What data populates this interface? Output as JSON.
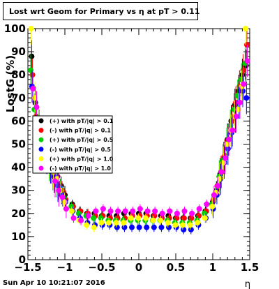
{
  "footer_timestamp": "Sun Apr 10 10:21:07 2016",
  "chart_data": {
    "type": "scatter",
    "title": "Lost wrt Geom for Primary vs  η at pT > 0.11",
    "xlabel": "η",
    "ylabel": "LostG (%)",
    "xlim": [
      -1.5,
      1.5
    ],
    "ylim": [
      0,
      100
    ],
    "xticks": [
      "−1.5",
      "−1",
      "−0.5",
      "0",
      "0.5",
      "1",
      "1.5"
    ],
    "yticks": [
      "0",
      "10",
      "20",
      "30",
      "40",
      "50",
      "60",
      "70",
      "80",
      "90",
      "100"
    ],
    "legend_position": "left-center",
    "x": [
      -1.45,
      -1.4,
      -1.35,
      -1.3,
      -1.25,
      -1.2,
      -1.15,
      -1.1,
      -1.05,
      -1.0,
      -0.9,
      -0.8,
      -0.7,
      -0.6,
      -0.5,
      -0.4,
      -0.3,
      -0.2,
      -0.1,
      0.0,
      0.1,
      0.2,
      0.3,
      0.4,
      0.5,
      0.6,
      0.7,
      0.8,
      0.9,
      1.0,
      1.05,
      1.1,
      1.15,
      1.2,
      1.25,
      1.3,
      1.35,
      1.4,
      1.45
    ],
    "series": [
      {
        "name": "(+) with pT/|q| > 0.1",
        "color": "#000000",
        "values": [
          88,
          68,
          58,
          48,
          45,
          42,
          40,
          36,
          32,
          28,
          24,
          21,
          20,
          20,
          19,
          19,
          19,
          20,
          20,
          20,
          20,
          19,
          19,
          19,
          18,
          18,
          18,
          19,
          21,
          25,
          30,
          37,
          44,
          52,
          60,
          67,
          73,
          80,
          84
        ]
      },
      {
        "name": "(-) with pT/|q| > 0.1",
        "color": "#ff0000",
        "values": [
          80,
          62,
          55,
          50,
          45,
          40,
          36,
          33,
          30,
          26,
          23,
          21,
          20,
          19,
          19,
          18,
          18,
          18,
          19,
          19,
          19,
          19,
          18,
          18,
          18,
          18,
          18,
          19,
          21,
          26,
          32,
          38,
          45,
          52,
          60,
          68,
          75,
          82,
          93
        ]
      },
      {
        "name": "(+) with pT/|q| > 0.5",
        "color": "#00cc00",
        "values": [
          82,
          65,
          56,
          52,
          46,
          41,
          37,
          34,
          31,
          27,
          23,
          20,
          19,
          18,
          18,
          17,
          17,
          17,
          17,
          17,
          17,
          17,
          17,
          17,
          16,
          16,
          16,
          17,
          20,
          24,
          29,
          36,
          43,
          50,
          58,
          65,
          71,
          78,
          85
        ]
      },
      {
        "name": "(-) with pT/|q| > 0.5",
        "color": "#0000ff",
        "values": [
          75,
          55,
          52,
          48,
          44,
          40,
          36,
          32,
          28,
          25,
          21,
          18,
          16,
          15,
          15,
          15,
          14,
          14,
          14,
          14,
          14,
          14,
          14,
          14,
          14,
          13,
          13,
          15,
          18,
          22,
          28,
          35,
          42,
          48,
          55,
          62,
          68,
          73,
          70
        ]
      },
      {
        "name": "(+) with pT/|q| > 1.0",
        "color": "#ffff00",
        "values": [
          100,
          70,
          60,
          55,
          48,
          42,
          38,
          35,
          30,
          25,
          21,
          17,
          15,
          14,
          16,
          16,
          16,
          16,
          18,
          18,
          18,
          17,
          17,
          16,
          15,
          15,
          15,
          16,
          18,
          23,
          29,
          35,
          42,
          50,
          56,
          62,
          65,
          75,
          100
        ]
      },
      {
        "name": "(-) with pT/|q| > 1.0",
        "color": "#ff00ff",
        "values": [
          74,
          66,
          55,
          50,
          45,
          40,
          34,
          30,
          27,
          22,
          18,
          17,
          19,
          21,
          22,
          21,
          21,
          21,
          21,
          22,
          21,
          21,
          20,
          21,
          20,
          21,
          20,
          22,
          24,
          28,
          32,
          38,
          44,
          52,
          56,
          62,
          68,
          76,
          86
        ]
      }
    ]
  }
}
